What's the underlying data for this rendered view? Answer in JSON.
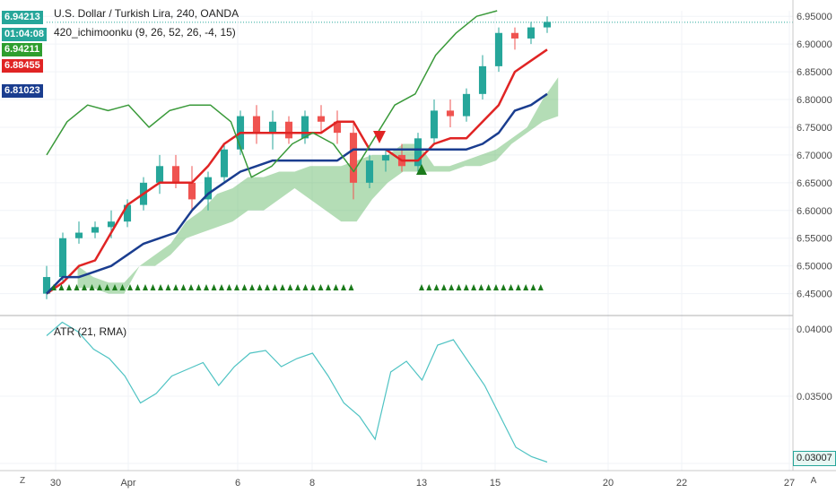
{
  "chart_data": [
    {
      "type": "line",
      "title": "U.S. Dollar / Turkish Lira, 240, OANDA",
      "indicator_label": "420_ichimoonku (9, 26, 52, 26, -4, 15)",
      "ylim": [
        6.43,
        6.96
      ],
      "y_ticks": [
        "6.45000",
        "6.50000",
        "6.55000",
        "6.60000",
        "6.65000",
        "6.70000",
        "6.75000",
        "6.80000",
        "6.85000",
        "6.90000",
        "6.95000"
      ],
      "x_ticks": [
        "30",
        "Apr",
        "6",
        "8",
        "13",
        "15",
        "20",
        "22",
        "27"
      ],
      "price_badges": [
        {
          "label": "6.94213",
          "color": "#26a69a"
        },
        {
          "label": "01:04:08",
          "color": "#26a69a"
        },
        {
          "label": "6.94211",
          "color": "#2e9e2e"
        },
        {
          "label": "6.88455",
          "color": "#e02424"
        },
        {
          "label": "6.81023",
          "color": "#1a3d8f"
        }
      ],
      "series": [
        {
          "name": "conversion",
          "color": "#e02424",
          "values": [
            6.45,
            6.47,
            6.5,
            6.51,
            6.56,
            6.61,
            6.63,
            6.65,
            6.65,
            6.65,
            6.68,
            6.72,
            6.74,
            6.74,
            6.74,
            6.74,
            6.74,
            6.74,
            6.76,
            6.76,
            6.71,
            6.71,
            6.69,
            6.69,
            6.72,
            6.73,
            6.73,
            6.76,
            6.79,
            6.85,
            6.87,
            6.89
          ]
        },
        {
          "name": "base",
          "color": "#1a3d8f",
          "values": [
            6.45,
            6.48,
            6.48,
            6.49,
            6.5,
            6.52,
            6.54,
            6.55,
            6.56,
            6.6,
            6.63,
            6.65,
            6.67,
            6.68,
            6.69,
            6.69,
            6.69,
            6.69,
            6.69,
            6.71,
            6.71,
            6.71,
            6.71,
            6.71,
            6.71,
            6.71,
            6.71,
            6.72,
            6.74,
            6.78,
            6.79,
            6.81
          ]
        },
        {
          "name": "lagging",
          "color": "#3a9a3a",
          "values": [
            6.7,
            6.76,
            6.79,
            6.78,
            6.79,
            6.75,
            6.78,
            6.79,
            6.79,
            6.76,
            6.66,
            6.68,
            6.72,
            6.74,
            6.72,
            6.67,
            6.73,
            6.79,
            6.81,
            6.88,
            6.92,
            6.95,
            6.96
          ]
        }
      ],
      "cloud": {
        "x_start": 2,
        "upper": [
          6.5,
          6.48,
          6.47,
          6.47,
          6.5,
          6.52,
          6.54,
          6.58,
          6.6,
          6.63,
          6.64,
          6.66,
          6.66,
          6.67,
          6.67,
          6.68,
          6.68,
          6.68,
          6.69,
          6.7,
          6.7,
          6.72,
          6.72,
          6.68,
          6.68,
          6.69,
          6.7,
          6.71,
          6.73,
          6.75,
          6.8,
          6.84
        ],
        "lower": [
          6.46,
          6.46,
          6.45,
          6.45,
          6.5,
          6.5,
          6.52,
          6.55,
          6.56,
          6.57,
          6.58,
          6.6,
          6.6,
          6.62,
          6.64,
          6.62,
          6.6,
          6.58,
          6.58,
          6.62,
          6.65,
          6.67,
          6.67,
          6.67,
          6.67,
          6.68,
          6.68,
          6.69,
          6.72,
          6.74,
          6.76,
          6.77
        ]
      },
      "candles": [
        {
          "o": 6.45,
          "h": 6.5,
          "l": 6.44,
          "c": 6.48
        },
        {
          "o": 6.48,
          "h": 6.56,
          "l": 6.47,
          "c": 6.55
        },
        {
          "o": 6.55,
          "h": 6.58,
          "l": 6.54,
          "c": 6.56
        },
        {
          "o": 6.56,
          "h": 6.58,
          "l": 6.55,
          "c": 6.57
        },
        {
          "o": 6.57,
          "h": 6.6,
          "l": 6.55,
          "c": 6.58
        },
        {
          "o": 6.58,
          "h": 6.62,
          "l": 6.57,
          "c": 6.61
        },
        {
          "o": 6.61,
          "h": 6.66,
          "l": 6.6,
          "c": 6.65
        },
        {
          "o": 6.65,
          "h": 6.7,
          "l": 6.63,
          "c": 6.68
        },
        {
          "o": 6.68,
          "h": 6.7,
          "l": 6.64,
          "c": 6.65
        },
        {
          "o": 6.65,
          "h": 6.68,
          "l": 6.6,
          "c": 6.62
        },
        {
          "o": 6.62,
          "h": 6.67,
          "l": 6.6,
          "c": 6.66
        },
        {
          "o": 6.66,
          "h": 6.72,
          "l": 6.65,
          "c": 6.71
        },
        {
          "o": 6.71,
          "h": 6.78,
          "l": 6.7,
          "c": 6.77
        },
        {
          "o": 6.77,
          "h": 6.79,
          "l": 6.72,
          "c": 6.74
        },
        {
          "o": 6.74,
          "h": 6.78,
          "l": 6.71,
          "c": 6.76
        },
        {
          "o": 6.76,
          "h": 6.77,
          "l": 6.72,
          "c": 6.73
        },
        {
          "o": 6.73,
          "h": 6.78,
          "l": 6.72,
          "c": 6.77
        },
        {
          "o": 6.77,
          "h": 6.79,
          "l": 6.74,
          "c": 6.76
        },
        {
          "o": 6.76,
          "h": 6.78,
          "l": 6.72,
          "c": 6.74
        },
        {
          "o": 6.74,
          "h": 6.76,
          "l": 6.62,
          "c": 6.65
        },
        {
          "o": 6.65,
          "h": 6.7,
          "l": 6.64,
          "c": 6.69
        },
        {
          "o": 6.69,
          "h": 6.71,
          "l": 6.67,
          "c": 6.7
        },
        {
          "o": 6.7,
          "h": 6.72,
          "l": 6.67,
          "c": 6.68
        },
        {
          "o": 6.68,
          "h": 6.74,
          "l": 6.67,
          "c": 6.73
        },
        {
          "o": 6.73,
          "h": 6.8,
          "l": 6.72,
          "c": 6.78
        },
        {
          "o": 6.78,
          "h": 6.8,
          "l": 6.75,
          "c": 6.77
        },
        {
          "o": 6.77,
          "h": 6.82,
          "l": 6.76,
          "c": 6.81
        },
        {
          "o": 6.81,
          "h": 6.88,
          "l": 6.8,
          "c": 6.86
        },
        {
          "o": 6.86,
          "h": 6.93,
          "l": 6.85,
          "c": 6.92
        },
        {
          "o": 6.92,
          "h": 6.93,
          "l": 6.89,
          "c": 6.91
        },
        {
          "o": 6.91,
          "h": 6.94,
          "l": 6.9,
          "c": 6.93
        },
        {
          "o": 6.93,
          "h": 6.95,
          "l": 6.92,
          "c": 6.94
        }
      ]
    },
    {
      "type": "line",
      "title": "ATR (21, RMA)",
      "ylim": [
        0.0298,
        0.0406
      ],
      "y_ticks": [
        "0.03000",
        "0.03500",
        "0.04000"
      ],
      "last_value": "0.03007",
      "series": [
        {
          "name": "ATR",
          "color": "#4fc3c3",
          "values": [
            0.0395,
            0.0405,
            0.0398,
            0.0385,
            0.0378,
            0.0365,
            0.0345,
            0.0352,
            0.0365,
            0.037,
            0.0375,
            0.0358,
            0.0372,
            0.0382,
            0.0384,
            0.0372,
            0.0378,
            0.0382,
            0.0365,
            0.0345,
            0.0335,
            0.0318,
            0.0368,
            0.0376,
            0.0362,
            0.0388,
            0.0392,
            0.0375,
            0.0358,
            0.0335,
            0.0312,
            0.0305,
            0.0301
          ]
        }
      ]
    }
  ]
}
